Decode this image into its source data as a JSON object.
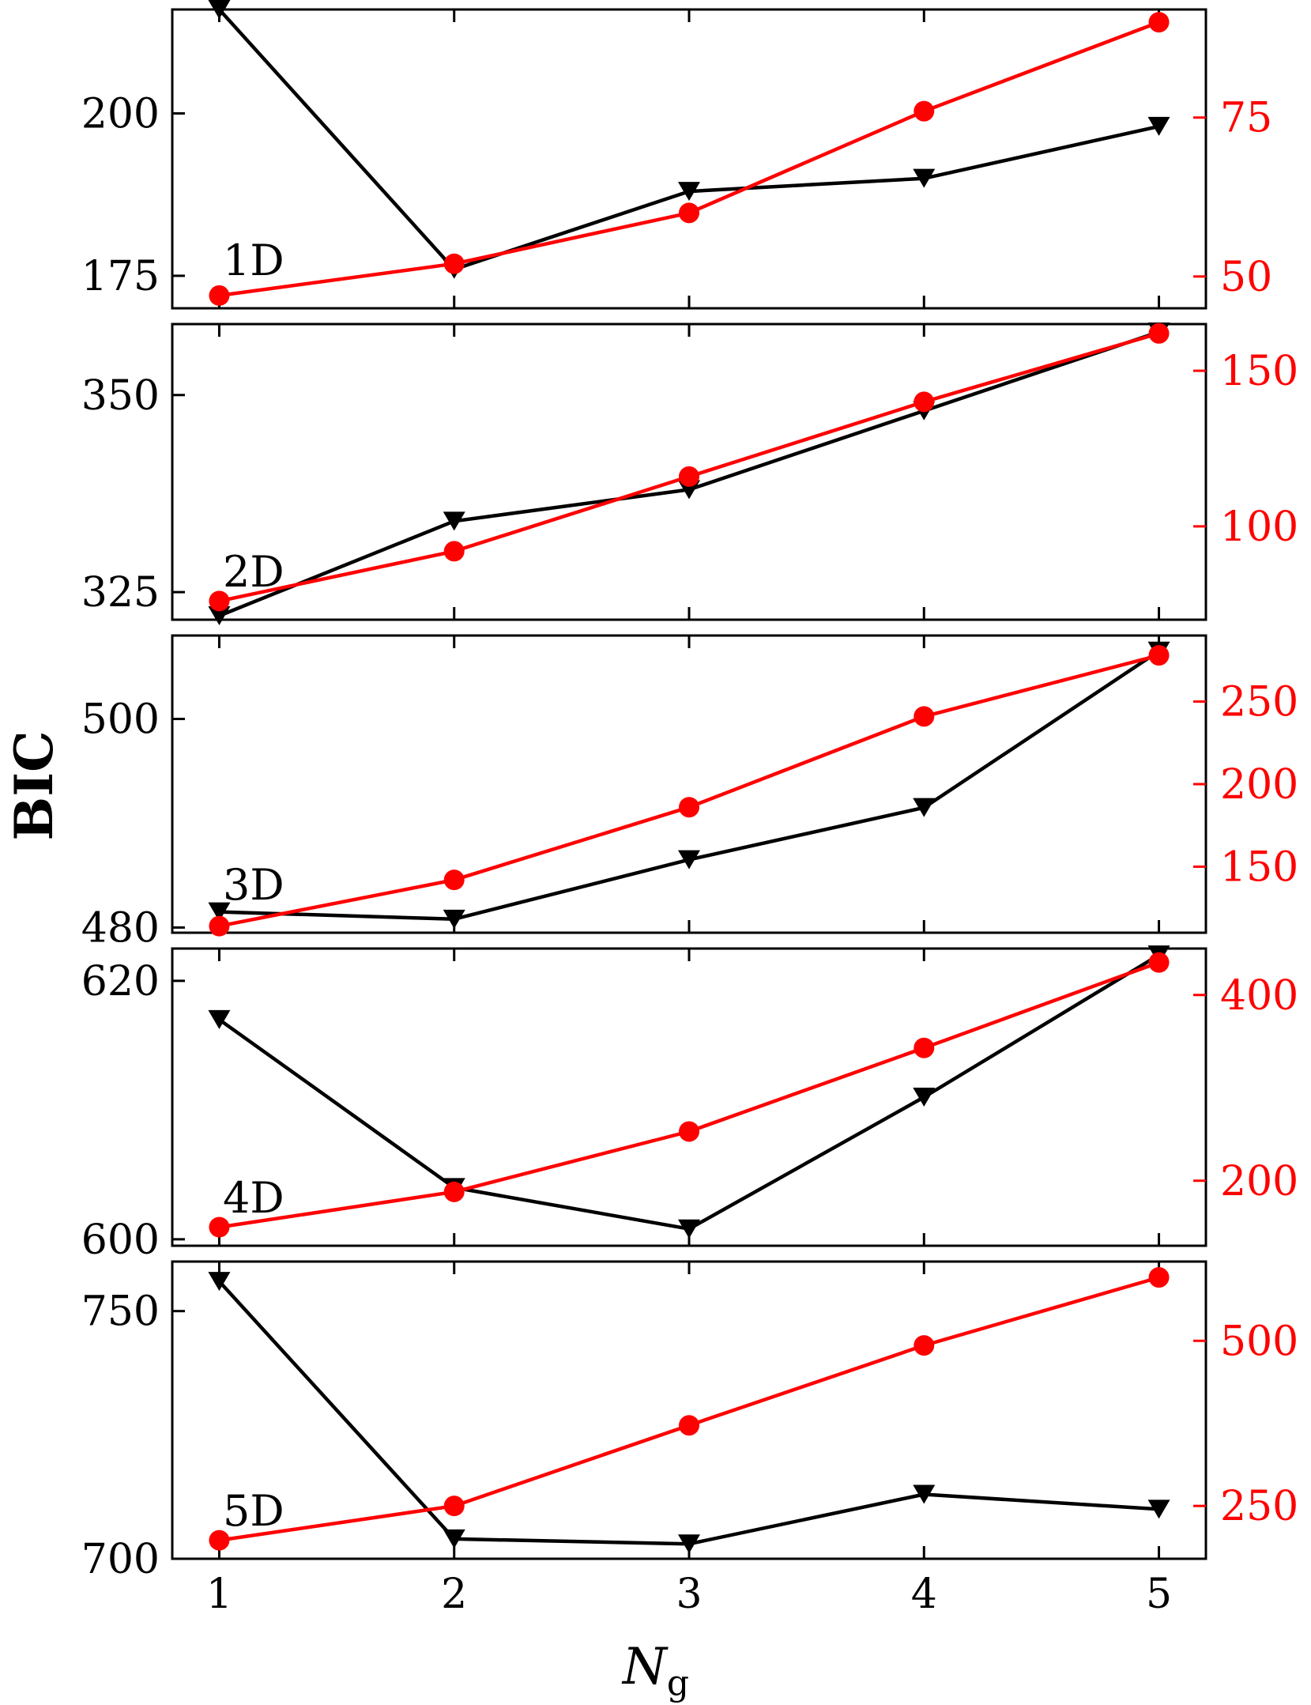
{
  "figure": {
    "ylabel": "BIC",
    "xlabel_main": "N",
    "xlabel_sub": "g",
    "x_ticks": [
      "1",
      "2",
      "3",
      "4",
      "5"
    ]
  },
  "colors": {
    "bic_series": "#000000",
    "secondary_series": "#ff0000",
    "axes": "#000000"
  },
  "chart_data": [
    {
      "type": "line",
      "panel_label": "1D",
      "x": [
        1,
        2,
        3,
        4,
        5
      ],
      "left_axis": {
        "ylim": [
          170,
          216
        ],
        "ticks": [
          175,
          200
        ]
      },
      "right_axis": {
        "ylim": [
          45,
          92
        ],
        "ticks": [
          50,
          75
        ]
      },
      "series": [
        {
          "axis": "left",
          "marker": "triangle-down",
          "values": [
            216,
            176,
            188,
            190,
            198
          ]
        },
        {
          "axis": "right",
          "marker": "circle",
          "values": [
            47,
            52,
            60,
            76,
            90
          ]
        }
      ]
    },
    {
      "type": "line",
      "panel_label": "2D",
      "x": [
        1,
        2,
        3,
        4,
        5
      ],
      "left_axis": {
        "ylim": [
          321.5,
          359
        ],
        "ticks": [
          325,
          350
        ]
      },
      "right_axis": {
        "ylim": [
          70,
          165
        ],
        "ticks": [
          100,
          150
        ]
      },
      "series": [
        {
          "axis": "left",
          "marker": "triangle-down",
          "values": [
            322,
            334,
            338,
            348,
            358
          ]
        },
        {
          "axis": "right",
          "marker": "circle",
          "values": [
            76,
            92,
            116,
            140,
            162
          ]
        }
      ]
    },
    {
      "type": "line",
      "panel_label": "3D",
      "x": [
        1,
        2,
        3,
        4,
        5
      ],
      "left_axis": {
        "ylim": [
          479.5,
          508
        ],
        "ticks": [
          480,
          500
        ]
      },
      "right_axis": {
        "ylim": [
          110,
          290
        ],
        "ticks": [
          150,
          200,
          250
        ]
      },
      "series": [
        {
          "axis": "left",
          "marker": "triangle-down",
          "values": [
            481.5,
            480.8,
            486.5,
            491.5,
            506.5
          ]
        },
        {
          "axis": "right",
          "marker": "circle",
          "values": [
            114,
            142,
            186,
            241,
            278
          ]
        }
      ]
    },
    {
      "type": "line",
      "panel_label": "4D",
      "x": [
        1,
        2,
        3,
        4,
        5
      ],
      "left_axis": {
        "ylim": [
          599.5,
          622.5
        ],
        "ticks": [
          600,
          620
        ]
      },
      "right_axis": {
        "ylim": [
          130,
          450
        ],
        "ticks": [
          200,
          400
        ]
      },
      "series": [
        {
          "axis": "left",
          "marker": "triangle-down",
          "values": [
            617,
            604,
            600.8,
            611,
            622
          ]
        },
        {
          "axis": "right",
          "marker": "circle",
          "values": [
            150,
            188,
            253,
            343,
            435
          ]
        }
      ]
    },
    {
      "type": "line",
      "panel_label": "5D",
      "x": [
        1,
        2,
        3,
        4,
        5
      ],
      "left_axis": {
        "ylim": [
          700,
          760
        ],
        "ticks": [
          700,
          750
        ]
      },
      "right_axis": {
        "ylim": [
          170,
          620
        ],
        "ticks": [
          250,
          500
        ]
      },
      "series": [
        {
          "axis": "left",
          "marker": "triangle-down",
          "values": [
            756,
            704,
            703,
            713,
            710
          ]
        },
        {
          "axis": "right",
          "marker": "circle",
          "values": [
            198,
            250,
            372,
            493,
            596
          ]
        }
      ]
    }
  ]
}
